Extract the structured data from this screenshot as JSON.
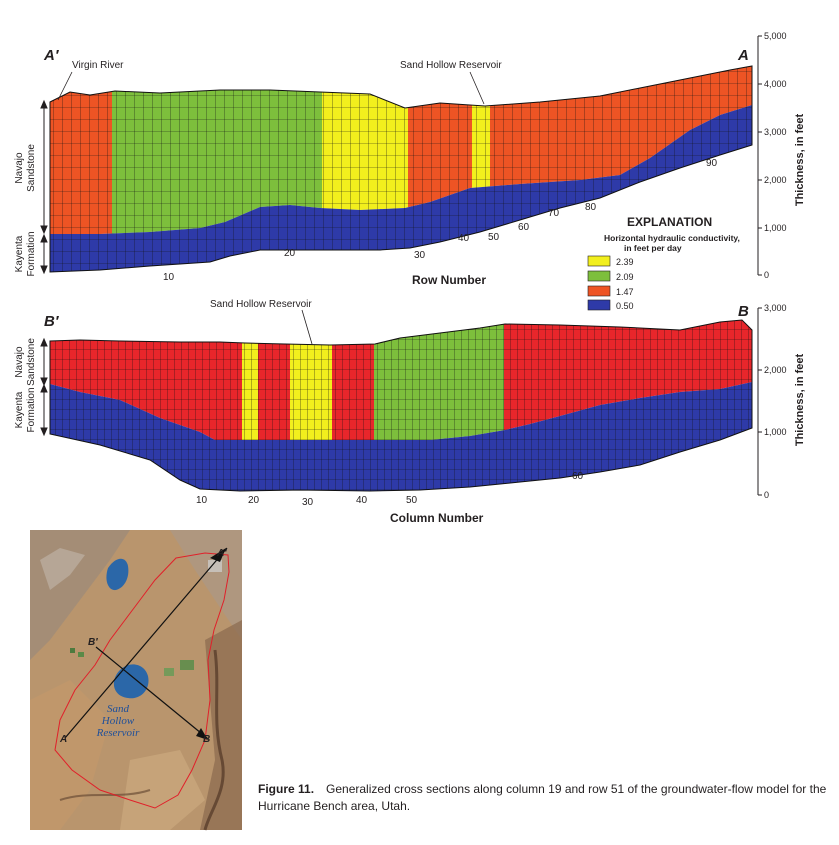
{
  "section_top": {
    "end_left": "A′",
    "end_right": "A",
    "callout_river": "Virgin River",
    "callout_reservoir": "Sand Hollow Reservoir",
    "axis_title": "Row Number",
    "row_ticks": [
      "10",
      "20",
      "30",
      "40",
      "50",
      "60",
      "70",
      "80",
      "90"
    ],
    "thickness_ticks": [
      "5,000",
      "4,000",
      "3,000",
      "2,000",
      "1,000",
      "0"
    ],
    "thickness_label": "Thickness, in feet",
    "unit_upper": [
      "Navajo",
      "Sandstone"
    ],
    "unit_lower": [
      "Kayenta",
      "Formation"
    ]
  },
  "section_bottom": {
    "end_left": "B′",
    "end_right": "B",
    "callout_reservoir": "Sand Hollow Reservoir",
    "axis_title": "Column Number",
    "col_ticks": [
      "10",
      "20",
      "30",
      "40",
      "50",
      "60"
    ],
    "thickness_ticks": [
      "3,000",
      "2,000",
      "1,000",
      "0"
    ],
    "thickness_label": "Thickness, in feet",
    "unit_upper": [
      "Navajo",
      "Sandstone"
    ],
    "unit_lower": [
      "Kayenta",
      "Formation"
    ]
  },
  "explanation": {
    "title": "EXPLANATION",
    "subtitle_1": "Horizontal hydraulic conductivity,",
    "subtitle_2": "in feet per day",
    "items": [
      {
        "value": "2.39",
        "color": "#f2ef1d"
      },
      {
        "value": "2.09",
        "color": "#7dbf3c"
      },
      {
        "value": "1.47",
        "color": "#ee5424"
      },
      {
        "value": "0.50",
        "color": "#2e3aa8"
      }
    ]
  },
  "colors": {
    "yellow": "#f2ef1d",
    "green": "#7dbf3c",
    "orange": "#ee5424",
    "red": "#e8262b",
    "blue": "#2e3aa8",
    "boundary": "#e0202a"
  },
  "map": {
    "label_a_prime": "A′",
    "label_a": "A",
    "label_b_prime": "B′",
    "label_b": "B",
    "reservoir_label": [
      "Sand",
      "Hollow",
      "Reservoir"
    ]
  },
  "caption": {
    "figure": "Figure 11.",
    "text": "Generalized cross sections along column 19 and row 51 of the groundwater-flow model for the Hurricane Bench area, Utah."
  }
}
